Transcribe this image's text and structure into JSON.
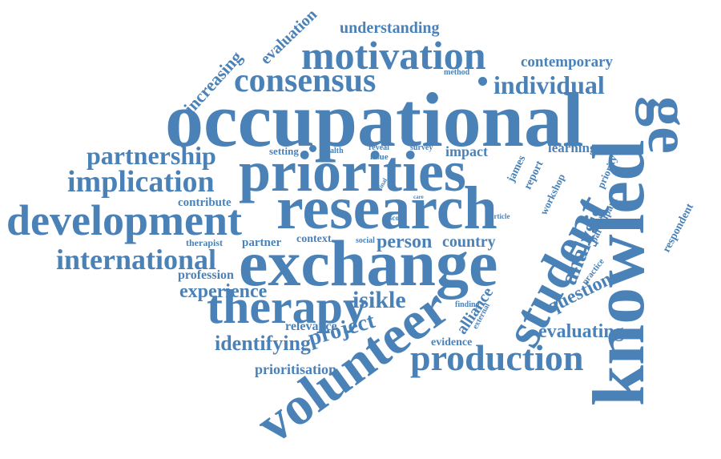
{
  "colors": {
    "word": "#4a82b8",
    "background": "#ffffff"
  },
  "words": [
    {
      "id": "occupational",
      "text": "occupational"
    },
    {
      "id": "research",
      "text": "research"
    },
    {
      "id": "exchange",
      "text": "exchange"
    },
    {
      "id": "priorities",
      "text": "priorities"
    },
    {
      "id": "knowledge-know",
      "text": "knowled"
    },
    {
      "id": "knowledge-ge",
      "text": "ge"
    },
    {
      "id": "volunteer",
      "text": "volunteer"
    },
    {
      "id": "student",
      "text": "student"
    },
    {
      "id": "development",
      "text": "development"
    },
    {
      "id": "motivation",
      "text": "motivation"
    },
    {
      "id": "consensus",
      "text": "consensus"
    },
    {
      "id": "therapy",
      "text": "therapy"
    },
    {
      "id": "production",
      "text": "production"
    },
    {
      "id": "international",
      "text": "international"
    },
    {
      "id": "implication",
      "text": "implication"
    },
    {
      "id": "partnership",
      "text": "partnership"
    },
    {
      "id": "individual",
      "text": "individual"
    },
    {
      "id": "analysis",
      "text": "analysis"
    },
    {
      "id": "project",
      "text": "project"
    },
    {
      "id": "question",
      "text": "question"
    },
    {
      "id": "experience",
      "text": "experience"
    },
    {
      "id": "isikle",
      "text": "isikle"
    },
    {
      "id": "evaluating",
      "text": "evaluating"
    },
    {
      "id": "identifying",
      "text": "identifying"
    },
    {
      "id": "person",
      "text": "person"
    },
    {
      "id": "country",
      "text": "country"
    },
    {
      "id": "increasing",
      "text": "increasing"
    },
    {
      "id": "evaluation",
      "text": "evaluation"
    },
    {
      "id": "understanding",
      "text": "understanding"
    },
    {
      "id": "contemporary",
      "text": "contemporary"
    },
    {
      "id": "prioritisation",
      "text": "prioritisation"
    },
    {
      "id": "alliance",
      "text": "alliance"
    },
    {
      "id": "learning",
      "text": "learning"
    },
    {
      "id": "impact",
      "text": "impact"
    },
    {
      "id": "relevance",
      "text": "relevance"
    },
    {
      "id": "profession",
      "text": "profession"
    },
    {
      "id": "respondent",
      "text": "respondent"
    },
    {
      "id": "contribute",
      "text": "contribute"
    },
    {
      "id": "evidence",
      "text": "evidence"
    },
    {
      "id": "james",
      "text": "james"
    },
    {
      "id": "report",
      "text": "report"
    },
    {
      "id": "workshop",
      "text": "workshop"
    },
    {
      "id": "priority",
      "text": "priority"
    },
    {
      "id": "participant",
      "text": "participant"
    },
    {
      "id": "practice",
      "text": "practice"
    },
    {
      "id": "partner",
      "text": "partner"
    },
    {
      "id": "context",
      "text": "context"
    },
    {
      "id": "therapist",
      "text": "therapist"
    },
    {
      "id": "setting",
      "text": "setting"
    },
    {
      "id": "health",
      "text": "health"
    },
    {
      "id": "reveal",
      "text": "reveal"
    },
    {
      "id": "survey",
      "text": "survey"
    },
    {
      "id": "issue",
      "text": "issue"
    },
    {
      "id": "method",
      "text": "method"
    },
    {
      "id": "social",
      "text": "social"
    },
    {
      "id": "scope",
      "text": "scope"
    },
    {
      "id": "article",
      "text": "article"
    },
    {
      "id": "finding",
      "text": "finding"
    },
    {
      "id": "external",
      "text": "external"
    },
    {
      "id": "final",
      "text": "final"
    },
    {
      "id": "care",
      "text": "care"
    }
  ]
}
